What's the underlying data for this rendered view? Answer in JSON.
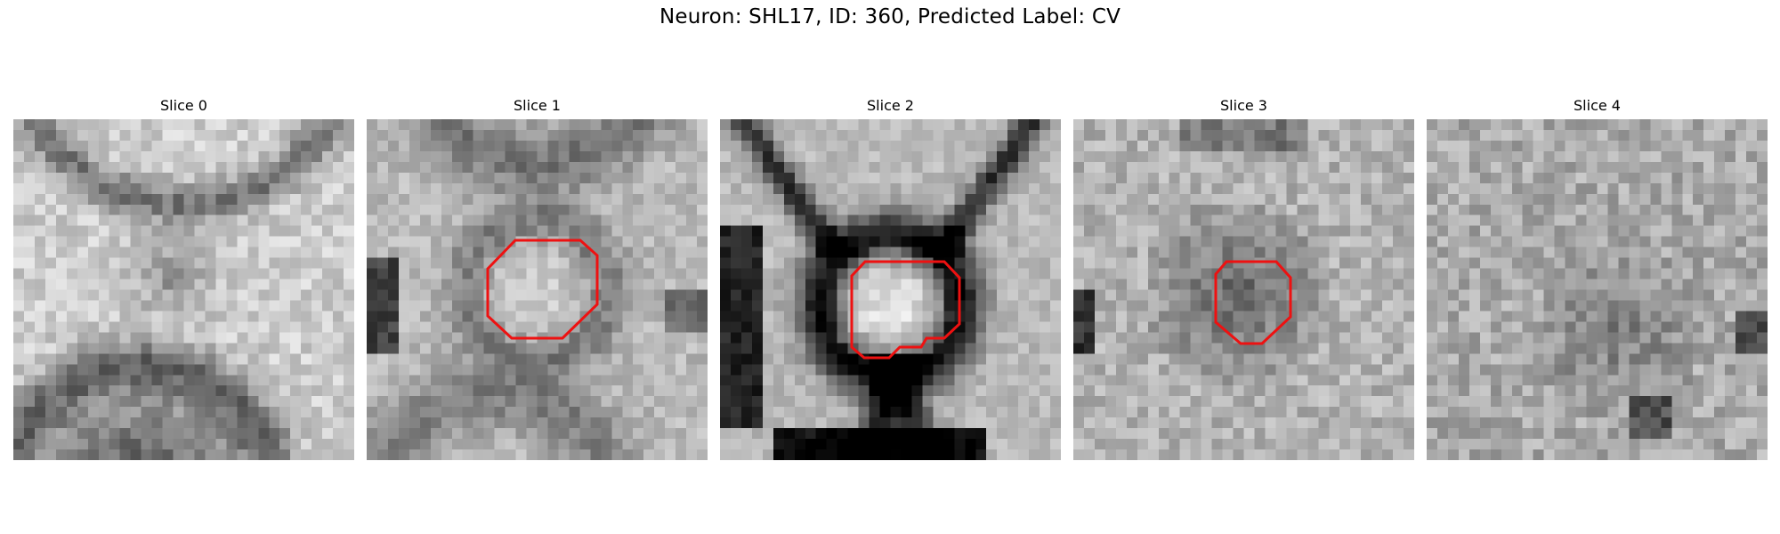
{
  "figure": {
    "title": "Neuron: SHL17, ID: 360, Predicted Label: CV"
  },
  "colors": {
    "roi_outline": "#ee1111",
    "background": "#ffffff"
  },
  "slices": [
    {
      "label": "Slice 0",
      "has_roi": false,
      "image_name": "em-slice-grayscale"
    },
    {
      "label": "Slice 1",
      "has_roi": true,
      "image_name": "em-slice-grayscale"
    },
    {
      "label": "Slice 2",
      "has_roi": true,
      "image_name": "em-slice-grayscale"
    },
    {
      "label": "Slice 3",
      "has_roi": true,
      "image_name": "em-slice-grayscale"
    },
    {
      "label": "Slice 4",
      "has_roi": false,
      "image_name": "em-slice-grayscale"
    }
  ]
}
